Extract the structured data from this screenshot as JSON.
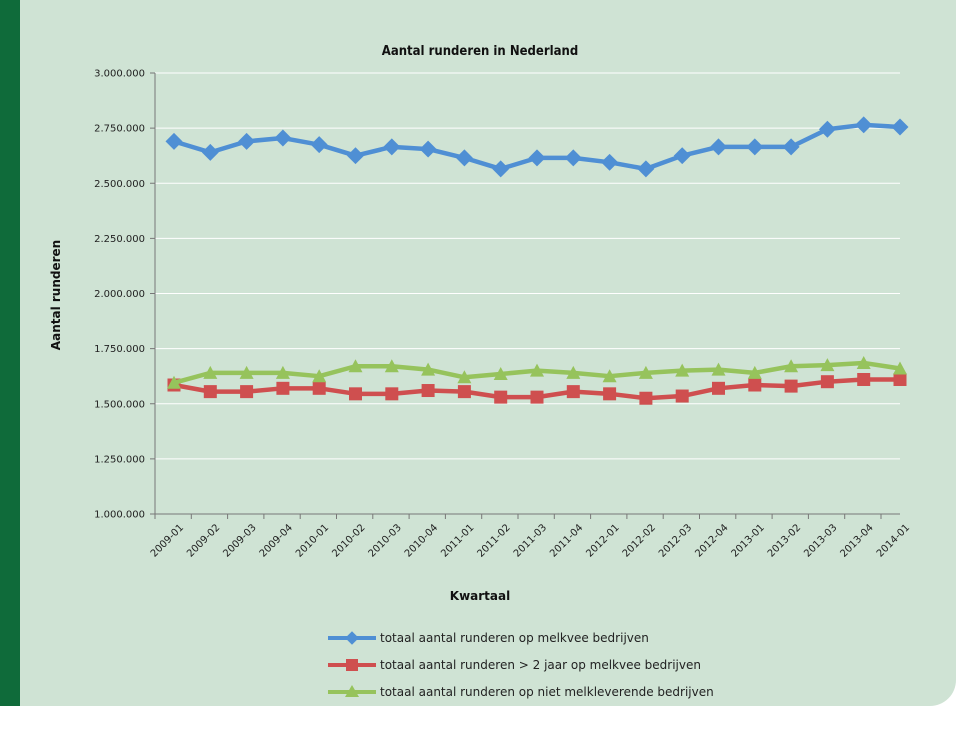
{
  "chart_data": {
    "type": "line",
    "title": "Aantal runderen in Nederland",
    "xlabel": "Kwartaal",
    "ylabel": "Aantal runderen",
    "ylim": [
      1000000,
      3000000
    ],
    "yticks": [
      "1.000.000",
      "1.250.000",
      "1.500.000",
      "1.750.000",
      "2.000.000",
      "2.250.000",
      "2.500.000",
      "2.750.000",
      "3.000.000"
    ],
    "ytick_values": [
      1000000,
      1250000,
      1500000,
      1750000,
      2000000,
      2250000,
      2500000,
      2750000,
      3000000
    ],
    "categories": [
      "2009-01",
      "2009-02",
      "2009-03",
      "2009-04",
      "2010-01",
      "2010-02",
      "2010-03",
      "2010-04",
      "2011-01",
      "2011-02",
      "2011-03",
      "2011-04",
      "2012-01",
      "2012-02",
      "2012-03",
      "2012-04",
      "2013-01",
      "2013-02",
      "2013-03",
      "2013-04",
      "2014-01"
    ],
    "grid": true,
    "legend_position": "bottom",
    "series": [
      {
        "name": "totaal aantal runderen op melkvee bedrijven",
        "color": "#4f8fd4",
        "marker": "diamond",
        "values": [
          2690000,
          2640000,
          2690000,
          2705000,
          2675000,
          2625000,
          2665000,
          2655000,
          2615000,
          2565000,
          2615000,
          2615000,
          2595000,
          2565000,
          2625000,
          2665000,
          2665000,
          2665000,
          2745000,
          2765000,
          2755000
        ]
      },
      {
        "name": "totaal aantal runderen > 2 jaar op melkvee bedrijven",
        "color": "#cf4f4f",
        "marker": "square",
        "values": [
          1585000,
          1555000,
          1555000,
          1570000,
          1570000,
          1545000,
          1545000,
          1560000,
          1555000,
          1530000,
          1530000,
          1555000,
          1545000,
          1525000,
          1535000,
          1570000,
          1585000,
          1580000,
          1600000,
          1610000,
          1610000
        ]
      },
      {
        "name": "totaal aantal runderen op niet melkleverende bedrijven",
        "color": "#96c35c",
        "marker": "triangle",
        "values": [
          1595000,
          1640000,
          1640000,
          1640000,
          1625000,
          1670000,
          1670000,
          1655000,
          1620000,
          1635000,
          1650000,
          1640000,
          1625000,
          1640000,
          1650000,
          1655000,
          1640000,
          1670000,
          1675000,
          1685000,
          1660000
        ]
      }
    ]
  }
}
